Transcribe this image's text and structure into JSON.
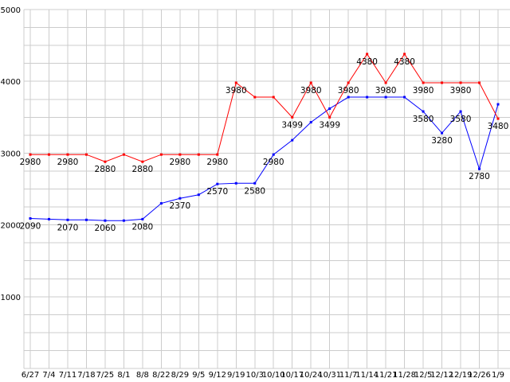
{
  "chart": {
    "background": "#ffffff",
    "grid_color": "#cccccc",
    "text_color": "#000000"
  },
  "chart_data": {
    "type": "line",
    "grid": true,
    "legend": "none",
    "ylim": [
      0,
      5000
    ],
    "y_minor_step": 250,
    "y_ticks": [
      1000,
      2000,
      3000,
      4000,
      5000
    ],
    "x_tick_labels": [
      "6/27",
      "7/4",
      "7/11",
      "7/18",
      "7/25",
      "8/1",
      "8/8",
      "8/22",
      "8/29",
      "9/5",
      "9/12",
      "9/19",
      "10/3",
      "10/10",
      "10/17",
      "10/24",
      "10/31",
      "11/7",
      "11/14",
      "11/21",
      "11/28",
      "12/5",
      "12/12",
      "12/19",
      "12/26",
      "1/9"
    ],
    "series": [
      {
        "name": "blue-series",
        "color": "#0000ff",
        "values": [
          2090,
          2080,
          2070,
          2070,
          2060,
          2060,
          2080,
          2300,
          2370,
          2420,
          2570,
          2580,
          2580,
          2980,
          3180,
          3430,
          3620,
          3780,
          3780,
          3780,
          3780,
          3580,
          3280,
          3580,
          2780,
          3680
        ],
        "point_labels": [
          "2090",
          "",
          "2070",
          "",
          "2060",
          "",
          "2080",
          "",
          "2370",
          "",
          "2570",
          "",
          "2580",
          "2980",
          "",
          "",
          "",
          "",
          "",
          "",
          "",
          "3580",
          "3280",
          "3580",
          "2780",
          ""
        ]
      },
      {
        "name": "red-series",
        "color": "#ff0000",
        "values": [
          2980,
          2980,
          2980,
          2980,
          2880,
          2980,
          2880,
          2980,
          2980,
          2980,
          2980,
          3980,
          3780,
          3780,
          3499,
          3980,
          3499,
          3980,
          4380,
          3980,
          4380,
          3980,
          3980,
          3980,
          3980,
          3480
        ],
        "point_labels": [
          "2980",
          "",
          "2980",
          "",
          "2880",
          "",
          "2880",
          "",
          "2980",
          "",
          "2980",
          "3980",
          "",
          "",
          "3499",
          "3980",
          "3499",
          "3980",
          "4380",
          "3980",
          "4380",
          "3980",
          "",
          "3980",
          "",
          "3480"
        ]
      }
    ]
  }
}
